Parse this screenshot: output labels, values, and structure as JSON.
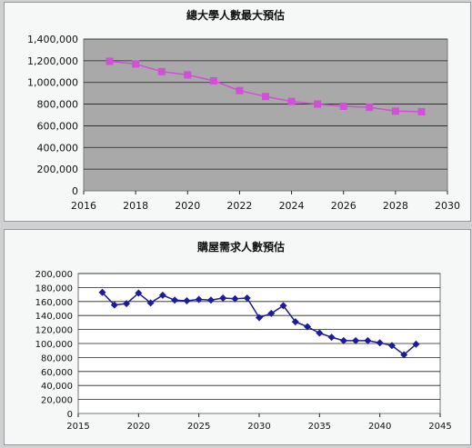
{
  "chart_data": [
    {
      "type": "line",
      "title": "總大學人數最大預估",
      "xlabel": "",
      "ylabel": "",
      "xlim": [
        2016,
        2030
      ],
      "ylim": [
        0,
        1400000
      ],
      "x_ticks": [
        "2016",
        "2018",
        "2020",
        "2022",
        "2024",
        "2026",
        "2028",
        "2030"
      ],
      "y_ticks": [
        "0",
        "200,000",
        "400,000",
        "600,000",
        "800,000",
        "1,000,000",
        "1,200,000",
        "1,400,000"
      ],
      "grid": true,
      "legend": "none",
      "plot_background": "#a9a9a9",
      "series_color": "#d050d8",
      "series": [
        {
          "x": [
            2017,
            2018,
            2019,
            2020,
            2021,
            2022,
            2023,
            2024,
            2025,
            2026,
            2027,
            2028,
            2029
          ],
          "values": [
            1195000,
            1170000,
            1100000,
            1070000,
            1015000,
            925000,
            870000,
            825000,
            800000,
            780000,
            770000,
            735000,
            730000
          ]
        }
      ]
    },
    {
      "type": "line",
      "title": "購屋需求人數預估",
      "xlabel": "",
      "ylabel": "",
      "xlim": [
        2015,
        2045
      ],
      "ylim": [
        0,
        200000
      ],
      "x_ticks": [
        "2015",
        "2020",
        "2025",
        "2030",
        "2035",
        "2040",
        "2045"
      ],
      "y_ticks": [
        "0",
        "20,000",
        "40,000",
        "60,000",
        "80,000",
        "100,000",
        "120,000",
        "140,000",
        "160,000",
        "180,000",
        "200,000"
      ],
      "grid": true,
      "legend": "none",
      "plot_background": "#ffffff",
      "series_color": "#1c1c9c",
      "series": [
        {
          "x": [
            2017,
            2018,
            2019,
            2020,
            2021,
            2022,
            2023,
            2024,
            2025,
            2026,
            2027,
            2028,
            2029,
            2030,
            2031,
            2032,
            2033,
            2034,
            2035,
            2036,
            2037,
            2038,
            2039,
            2040,
            2041,
            2042,
            2043
          ],
          "values": [
            173000,
            155000,
            157000,
            172000,
            158000,
            169000,
            162000,
            161000,
            163000,
            162000,
            165000,
            164000,
            165000,
            137000,
            143000,
            154000,
            131000,
            124000,
            115000,
            109000,
            104000,
            104000,
            104000,
            101000,
            97000,
            84000,
            99000
          ]
        }
      ]
    }
  ]
}
